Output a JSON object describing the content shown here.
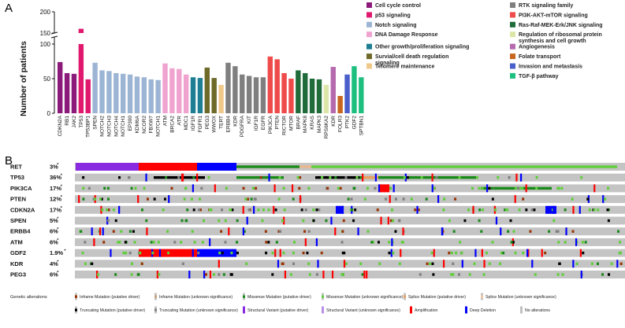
{
  "panel_a_letter": "A",
  "panel_b_letter": "B",
  "chart_data": [
    {
      "type": "bar",
      "ylabel": "Number of patients",
      "xlabel": "",
      "title": "",
      "y_break": [
        100,
        150
      ],
      "y_lower_ticks": [
        "0",
        "50",
        "100"
      ],
      "y_upper_ticks": [
        "150",
        "200"
      ],
      "categories": [
        "CDKN2A",
        "RB1",
        "JAK2",
        "TP53",
        "TP53BP1",
        "SPEN",
        "NOTCH2",
        "NOTCH3",
        "NOTCH4",
        "NOTCH1",
        "EP300",
        "KDM6A",
        "NCOR2",
        "FBXW7",
        "NOTCH1",
        "ATM",
        "BRCA2",
        "ATR",
        "MDC1",
        "IGF1R",
        "FGFR1",
        "PEG3",
        "WWOX",
        "TERT",
        "ERBB4",
        "KDR",
        "PDGFRA",
        "KIT",
        "IGF1R",
        "EGFR",
        "PIK3CA",
        "PTEN",
        "RICTOR",
        "MTOR",
        "BRAF",
        "MAPK8",
        "KRAS",
        "MAPK3",
        "RPS6KA2",
        "KDR",
        "FOLR3",
        "PTK2",
        "GDF2",
        "SPTBN1"
      ],
      "values": [
        74,
        58,
        57,
        160,
        49,
        73,
        62,
        61,
        58,
        57,
        56,
        53,
        52,
        49,
        48,
        72,
        65,
        64,
        56,
        52,
        51,
        66,
        51,
        41,
        73,
        68,
        56,
        54,
        52,
        52,
        82,
        78,
        58,
        50,
        62,
        58,
        50,
        49,
        41,
        67,
        25,
        56,
        68,
        52
      ],
      "groups": [
        "Cell cycle control",
        "Cell cycle control",
        "Cell cycle control",
        "p53 signaling",
        "p53 signaling",
        "Notch signaling",
        "Notch signaling",
        "Notch signaling",
        "Notch signaling",
        "Notch signaling",
        "Notch signaling",
        "Notch signaling",
        "Notch signaling",
        "Notch signaling",
        "Notch signaling",
        "DNA Damage Response",
        "DNA Damage Response",
        "DNA Damage Response",
        "DNA Damage Response",
        "Other growth/proliferation signaling",
        "Other growth/proliferation signaling",
        "Survial/cell death regulation signaling",
        "Survial/cell death regulation signaling",
        "Telomere maintenance",
        "RTK signaling family",
        "RTK signaling family",
        "RTK signaling family",
        "RTK signaling family",
        "RTK signaling family",
        "RTK signaling family",
        "PI3K-AKT-mTOR signaling",
        "PI3K-AKT-mTOR signaling",
        "PI3K-AKT-mTOR signaling",
        "PI3K-AKT-mTOR signaling",
        "Ras-Raf-MEK-Erk/JNK signaling",
        "Ras-Raf-MEK-Erk/JNK signaling",
        "Ras-Raf-MEK-Erk/JNK signaling",
        "Ras-Raf-MEK-Erk/JNK signaling",
        "Regulation of ribosomal protein synthesis and cell growth",
        "Angiogenesis",
        "Folate transport",
        "Invasion and metastasis",
        "TGF-β pathway",
        "TGF-β pathway"
      ],
      "legend": [
        {
          "name": "Cell cycle control",
          "color": "#8b1a7a"
        },
        {
          "name": "p53 signaling",
          "color": "#e0196f"
        },
        {
          "name": "Notch signaling",
          "color": "#9db5d4"
        },
        {
          "name": "DNA Damage Response",
          "color": "#f0a3cf"
        },
        {
          "name": "Other growth/proliferation signaling",
          "color": "#1e7f93"
        },
        {
          "name": "Survial/cell death regulation signaling",
          "color": "#6e6a2a"
        },
        {
          "name": "Telomere maintenance",
          "color": "#f0c98a"
        },
        {
          "name": "RTK signaling family",
          "color": "#7f7f7f"
        },
        {
          "name": "PI3K-AKT-mTOR signaling",
          "color": "#ef4b4b"
        },
        {
          "name": "Ras-Raf-MEK-Erk/JNK signaling",
          "color": "#1f6b3a"
        },
        {
          "name": "Regulation of ribosomal protein synthesis and cell growth",
          "color": "#dbe5a8"
        },
        {
          "name": "Angiogenesis",
          "color": "#b56aae"
        },
        {
          "name": "Folate transport",
          "color": "#c8661f"
        },
        {
          "name": "Invasion and metastasis",
          "color": "#4a5fc9"
        },
        {
          "name": "TGF-β pathway",
          "color": "#1dbf7f"
        }
      ]
    },
    {
      "type": "heatmap",
      "title": "",
      "rows": [
        {
          "gene": "RET",
          "pct": "3%",
          "mark": "*"
        },
        {
          "gene": "TP53",
          "pct": "36%",
          "mark": "*"
        },
        {
          "gene": "PIK3CA",
          "pct": "17%",
          "mark": "*"
        },
        {
          "gene": "PTEN",
          "pct": "12%",
          "mark": "*"
        },
        {
          "gene": "CDKN2A",
          "pct": "17%",
          "mark": "*"
        },
        {
          "gene": "SPEN",
          "pct": "5%",
          "mark": "*"
        },
        {
          "gene": "ERBB4",
          "pct": "6%",
          "mark": "*"
        },
        {
          "gene": "ATM",
          "pct": "6%",
          "mark": "*"
        },
        {
          "gene": "GDF2",
          "pct": "1.9%",
          "mark": "*"
        },
        {
          "gene": "KDR",
          "pct": "4%",
          "mark": "*"
        },
        {
          "gene": "PEG3",
          "pct": "6%",
          "mark": "*"
        }
      ],
      "legend_title": "Genetic alterations",
      "legend": [
        {
          "name": "Inframe Mutation (putative driver)",
          "color": "#993404"
        },
        {
          "name": "Inframe Mutation (unknown significance)",
          "color": "#c9a27e"
        },
        {
          "name": "Missense Mutation (putative driver)",
          "color": "#1a8a1a"
        },
        {
          "name": "Missense Mutation (unknown significance)",
          "color": "#5fcf3a"
        },
        {
          "name": "Splice Mutation (putative driver)",
          "color": "#e8a060"
        },
        {
          "name": "Splice Mutation (unknown significance)",
          "color": "#f2c9a0"
        },
        {
          "name": "Truncating Mutation (putative driver)",
          "color": "#000000"
        },
        {
          "name": "Truncating Mutation (unknown significance)",
          "color": "#808080"
        },
        {
          "name": "Structural Variant (putative driver)",
          "color": "#8a2be2"
        },
        {
          "name": "Structural Variant (unknown significance)",
          "color": "#b88fe8"
        },
        {
          "name": "Amplification",
          "color": "#ff0000"
        },
        {
          "name": "Deep Deletion",
          "color": "#0000ff"
        },
        {
          "name": "No alterations",
          "color": "#c0c0c0"
        }
      ],
      "track_bg": "#c4c4c4"
    }
  ]
}
